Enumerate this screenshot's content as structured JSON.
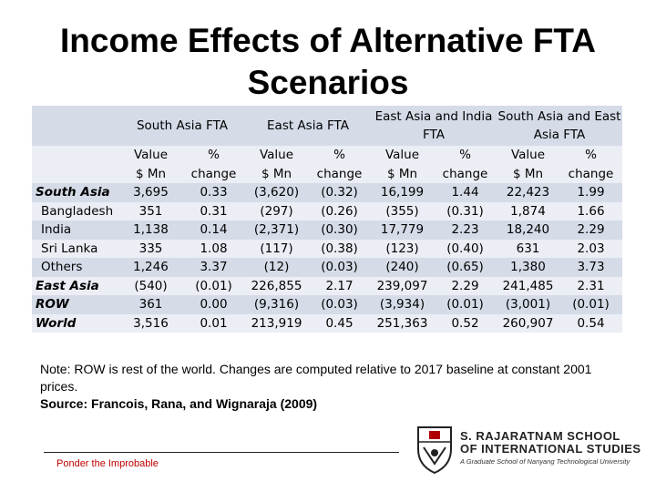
{
  "title_line1": "Income Effects of Alternative FTA",
  "title_line2": "Scenarios",
  "table": {
    "groups": [
      "South Asia FTA",
      "East Asia FTA",
      "East Asia and India FTA",
      "South Asia and East Asia FTA"
    ],
    "sub_headers": {
      "value_line1": "Value",
      "value_line2": "$ Mn",
      "pct_line1": "%",
      "pct_line2": "change"
    },
    "rows": [
      {
        "label": "South Asia",
        "cells": [
          "3,695",
          "0.33",
          "(3,620)",
          "(0.32)",
          "16,199",
          "1.44",
          "22,423",
          "1.99"
        ]
      },
      {
        "label": "Bangladesh",
        "cells": [
          "351",
          "0.31",
          "(297)",
          "(0.26)",
          "(355)",
          "(0.31)",
          "1,874",
          "1.66"
        ]
      },
      {
        "label": "India",
        "cells": [
          "1,138",
          "0.14",
          "(2,371)",
          "(0.30)",
          "17,779",
          "2.23",
          "18,240",
          "2.29"
        ]
      },
      {
        "label": "Sri Lanka",
        "cells": [
          "335",
          "1.08",
          "(117)",
          "(0.38)",
          "(123)",
          "(0.40)",
          "631",
          "2.03"
        ]
      },
      {
        "label": "Others",
        "cells": [
          "1,246",
          "3.37",
          "(12)",
          "(0.03)",
          "(240)",
          "(0.65)",
          "1,380",
          "3.73"
        ]
      },
      {
        "label": "East Asia",
        "cells": [
          "(540)",
          "(0.01)",
          "226,855",
          "2.17",
          "239,097",
          "2.29",
          "241,485",
          "2.31"
        ]
      },
      {
        "label": "ROW",
        "cells": [
          "361",
          "0.00",
          "(9,316)",
          "(0.03)",
          "(3,934)",
          "(0.01)",
          "(3,001)",
          "(0.01)"
        ]
      },
      {
        "label": "World",
        "cells": [
          "3,516",
          "0.01",
          "213,919",
          "0.45",
          "251,363",
          "0.52",
          "260,907",
          "0.54"
        ]
      }
    ]
  },
  "note_text": "Note: ROW is rest of the world. Changes are computed relative to 2017 baseline at constant 2001 prices.",
  "source_text": "Source: Francois, Rana, and Wignaraja (2009)",
  "footer": {
    "motto": "Ponder the Improbable",
    "school_line1": "S. RAJARATNAM SCHOOL",
    "school_line2": "OF INTERNATIONAL STUDIES",
    "school_tagline": "A Graduate School of Nanyang Technological University"
  }
}
